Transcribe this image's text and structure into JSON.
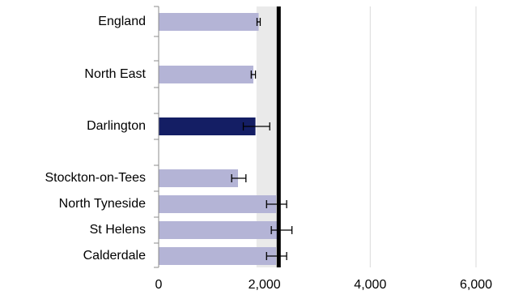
{
  "chart_data": {
    "type": "bar",
    "orientation": "horizontal",
    "categories": [
      "England",
      "North East",
      "Darlington",
      "Stockton-on-Tees",
      "North Tyneside",
      "St Helens",
      "Calderdale"
    ],
    "values": [
      1890,
      1790,
      1830,
      1500,
      2220,
      2300,
      2220
    ],
    "error_low": [
      1860,
      1750,
      1600,
      1380,
      2040,
      2130,
      2040
    ],
    "error_high": [
      1920,
      1830,
      2100,
      1650,
      2420,
      2520,
      2420
    ],
    "highlight": "Darlington",
    "reference_line": 2270,
    "shaded_band": [
      1850,
      2270
    ],
    "xlim": [
      0,
      6000
    ],
    "xticks": [
      0,
      2000,
      4000,
      6000
    ],
    "xtick_labels": [
      "0",
      "2,000",
      "4,000",
      "6,000"
    ],
    "grid": "vertical",
    "colors": {
      "bar": "#b4b4d6",
      "highlight": "#141e64",
      "band": "#eaeaea",
      "reference": "#000000",
      "grid": "#d9d9d9"
    }
  }
}
